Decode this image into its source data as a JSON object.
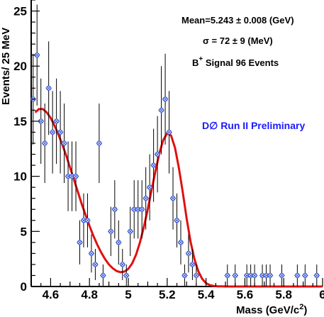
{
  "chart_data": {
    "type": "scatter",
    "xlabel": "Mass (GeV/c",
    "xlabel_sup": "2",
    "xlabel_close": ")",
    "ylabel": "Events/ 25  MeV",
    "xlim": [
      4.5,
      6.0
    ],
    "ylim": [
      0,
      26
    ],
    "x_ticks": [
      4.6,
      4.8,
      5.0,
      5.2,
      5.4,
      5.6,
      5.8,
      6.0
    ],
    "x_tick_labels": [
      "4.6",
      "4.8",
      "5",
      "5.2",
      "5.4",
      "5.6",
      "5.8",
      "6"
    ],
    "y_ticks": [
      0,
      5,
      10,
      15,
      20,
      25
    ],
    "y_tick_labels": [
      "0",
      "5",
      "10",
      "15",
      "20",
      "25"
    ],
    "grid": false,
    "series": [
      {
        "marker": "open-circle-cross",
        "color": "#3b5bdb",
        "x": [
          4.51,
          4.53,
          4.55,
          4.57,
          4.59,
          4.61,
          4.63,
          4.65,
          4.67,
          4.69,
          4.71,
          4.73,
          4.75,
          4.77,
          4.79,
          4.81,
          4.83,
          4.85,
          4.87,
          4.89,
          4.91,
          4.93,
          4.95,
          4.97,
          4.99,
          5.01,
          5.03,
          5.05,
          5.07,
          5.09,
          5.11,
          5.13,
          5.15,
          5.17,
          5.19,
          5.21,
          5.23,
          5.25,
          5.27,
          5.29,
          5.31,
          5.33,
          5.35,
          5.37,
          5.39,
          5.41,
          5.43,
          5.45,
          5.51,
          5.55,
          5.61,
          5.63,
          5.65,
          5.69,
          5.71,
          5.73,
          5.79,
          5.87,
          5.91,
          5.97
        ],
        "y": [
          17,
          21,
          15,
          13,
          18,
          14,
          15,
          14,
          13,
          10,
          10,
          10,
          4,
          6,
          6,
          3,
          2,
          13,
          1,
          0,
          5,
          7,
          4,
          2,
          1,
          5,
          7,
          7,
          7,
          8,
          9,
          11,
          12,
          16,
          17,
          14,
          8,
          6,
          4,
          1,
          3,
          2,
          1,
          0,
          0,
          0,
          0,
          0,
          1,
          1,
          1,
          1,
          1,
          1,
          1,
          1,
          1,
          1,
          1,
          1
        ]
      }
    ],
    "fit_curve": {
      "color": "#e01010",
      "x": [
        4.52,
        4.54,
        4.56,
        4.58,
        4.6,
        4.62,
        4.64,
        4.66,
        4.68,
        4.7,
        4.72,
        4.74,
        4.76,
        4.78,
        4.8,
        4.82,
        4.84,
        4.86,
        4.88,
        4.9,
        4.92,
        4.94,
        4.96,
        4.98,
        5.0,
        5.02,
        5.04,
        5.06,
        5.08,
        5.1,
        5.12,
        5.14,
        5.16,
        5.18,
        5.2,
        5.22,
        5.24,
        5.26,
        5.28,
        5.3,
        5.32,
        5.34,
        5.36,
        5.38,
        5.4,
        5.42,
        5.44,
        5.46,
        5.48,
        5.5,
        5.55,
        5.6,
        5.7,
        5.8,
        5.9,
        6.0
      ],
      "y": [
        15.8,
        16.1,
        16.1,
        15.8,
        15.3,
        14.6,
        13.8,
        12.9,
        11.9,
        10.8,
        9.7,
        8.6,
        7.5,
        6.5,
        5.5,
        4.6,
        3.8,
        3.1,
        2.5,
        2.0,
        1.65,
        1.4,
        1.3,
        1.35,
        1.6,
        2.1,
        2.9,
        4.0,
        5.4,
        7.0,
        8.8,
        10.5,
        12.1,
        13.3,
        13.9,
        13.7,
        12.6,
        10.8,
        8.6,
        6.2,
        4.1,
        2.5,
        1.4,
        0.7,
        0.3,
        0.12,
        0.05,
        0.02,
        0.01,
        0.0,
        0.0,
        0.0,
        0.0,
        0.0,
        0.0,
        0.0
      ]
    },
    "annotations": {
      "line1": "Mean=5.243  ± 0.008 (GeV)",
      "line2": "σ = 72 ± 9 (MeV)",
      "line3_base": "B",
      "line3_sup": "+",
      "line3_rest": " Signal 96 Events",
      "line4": "D∅ Run II Preliminary"
    }
  }
}
